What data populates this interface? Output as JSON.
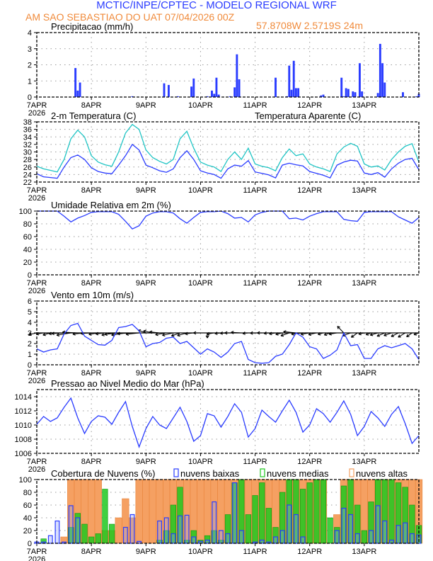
{
  "header": {
    "title": "MCTIC/INPE/CPTEC - MODELO REGIONAL WRF",
    "location": "AM SAO SEBASTIAO DO UAT   07/04/2026 00Z",
    "coords": "57.8708W 2.5719S 24m"
  },
  "colors": {
    "blue": "#2a3cff",
    "cyan": "#1ec4c4",
    "green": "#1fc81f",
    "orange": "#f5a062",
    "orange_edge": "#e8843a",
    "grid": "#9a9a9a"
  },
  "x_axis": {
    "day_labels": [
      "7APR",
      "8APR",
      "9APR",
      "10APR",
      "11APR",
      "12APR",
      "13APR"
    ],
    "year_label": "2026",
    "range": [
      "07/00Z",
      "14/00Z"
    ]
  },
  "time": [
    "07/00Z",
    "07/03Z",
    "07/06Z",
    "07/09Z",
    "07/12Z",
    "07/15Z",
    "07/18Z",
    "07/21Z",
    "08/00Z",
    "08/03Z",
    "08/06Z",
    "08/09Z",
    "08/12Z",
    "08/15Z",
    "08/18Z",
    "08/21Z",
    "09/00Z",
    "09/03Z",
    "09/06Z",
    "09/09Z",
    "09/12Z",
    "09/15Z",
    "09/18Z",
    "09/21Z",
    "10/00Z",
    "10/03Z",
    "10/06Z",
    "10/09Z",
    "10/12Z",
    "10/15Z",
    "10/18Z",
    "10/21Z",
    "11/00Z",
    "11/03Z",
    "11/06Z",
    "11/09Z",
    "11/12Z",
    "11/15Z",
    "11/18Z",
    "11/21Z",
    "12/00Z",
    "12/03Z",
    "12/06Z",
    "12/09Z",
    "12/12Z",
    "12/15Z",
    "12/18Z",
    "12/21Z",
    "13/00Z",
    "13/03Z",
    "13/06Z",
    "13/09Z",
    "13/12Z",
    "13/15Z",
    "13/18Z",
    "13/21Z",
    "14/00Z"
  ],
  "chart_data": [
    {
      "id": "precip",
      "type": "bar",
      "title": "Precipitacao (mm/h)",
      "ylim": [
        0,
        4
      ],
      "yticks": [
        0,
        1,
        2,
        3,
        4
      ],
      "grid": true,
      "points": [
        [
          "07/17Z",
          1.8
        ],
        [
          "07/18Z",
          0.4
        ],
        [
          "07/19Z",
          0.9
        ],
        [
          "08/18Z",
          0.05
        ],
        [
          "09/08Z",
          0.85
        ],
        [
          "09/10Z",
          0.75
        ],
        [
          "09/14Z",
          0.05
        ],
        [
          "09/20Z",
          0.65
        ],
        [
          "09/21Z",
          1.15
        ],
        [
          "10/03Z",
          0.05
        ],
        [
          "10/05Z",
          0.4
        ],
        [
          "10/06Z",
          0.2
        ],
        [
          "10/07Z",
          1.2
        ],
        [
          "10/08Z",
          0.15
        ],
        [
          "10/13Z",
          0.05
        ],
        [
          "10/15Z",
          0.6
        ],
        [
          "10/16Z",
          2.65
        ],
        [
          "10/17Z",
          1.1
        ],
        [
          "11/09Z",
          1.2
        ],
        [
          "11/14Z",
          0.05
        ],
        [
          "11/15Z",
          1.95
        ],
        [
          "11/16Z",
          0.45
        ],
        [
          "11/17Z",
          2.25
        ],
        [
          "11/18Z",
          0.55
        ],
        [
          "11/19Z",
          0.55
        ],
        [
          "12/05Z",
          0.1
        ],
        [
          "12/06Z",
          0.15
        ],
        [
          "12/14Z",
          1.2
        ],
        [
          "12/15Z",
          0.05
        ],
        [
          "12/16Z",
          0.55
        ],
        [
          "12/17Z",
          0.5
        ],
        [
          "12/19Z",
          0.35
        ],
        [
          "12/20Z",
          0.3
        ],
        [
          "12/22Z",
          2.1
        ],
        [
          "12/23Z",
          0.35
        ],
        [
          "13/06Z",
          0.25
        ],
        [
          "13/07Z",
          3.3
        ],
        [
          "13/08Z",
          2.1
        ],
        [
          "13/09Z",
          0.9
        ],
        [
          "13/17Z",
          0.3
        ],
        [
          "13/23Z",
          0.05
        ],
        [
          "14/00Z",
          0.2
        ]
      ]
    },
    {
      "id": "temp",
      "type": "line",
      "title": "2-m Temperatura (C)",
      "ylim": [
        22,
        38
      ],
      "yticks": [
        22,
        24,
        26,
        28,
        30,
        32,
        34,
        36,
        38
      ],
      "grid": true,
      "series": [
        {
          "name": "2-m Temperatura (C)",
          "color": "blue",
          "values": [
            24.2,
            23.4,
            23.2,
            23.0,
            26.0,
            28.5,
            29.2,
            28.0,
            25.8,
            24.8,
            24.4,
            24.2,
            26.5,
            29,
            32,
            30.5,
            26.5,
            25.8,
            25,
            24.6,
            25.5,
            28.5,
            30.3,
            28,
            25,
            24.4,
            24,
            23,
            25.5,
            26.5,
            26.2,
            27.7,
            24.7,
            24.3,
            23.9,
            23.1,
            26.5,
            27,
            26.6,
            26.3,
            24.8,
            24.3,
            23.8,
            23.1,
            26.5,
            27.3,
            27.8,
            27.6,
            24.4,
            24,
            24.5,
            23.3,
            25.5,
            27,
            28,
            28.3,
            25.3
          ]
        },
        {
          "name": "Temperatura Aparente (C)",
          "color": "cyan",
          "values": [
            26.2,
            25.5,
            25.1,
            24.7,
            28,
            33.5,
            35.8,
            34,
            29,
            27.3,
            26.6,
            26.2,
            30,
            35,
            37.3,
            36,
            30.5,
            28.5,
            27.5,
            26.8,
            28,
            33.5,
            35.5,
            31,
            27.3,
            26.5,
            26,
            24.8,
            28,
            30,
            28,
            31,
            26.8,
            26.2,
            25.8,
            25,
            28.5,
            30.8,
            29,
            29.5,
            26.8,
            26,
            25.5,
            24.8,
            29.5,
            31.3,
            32.3,
            31.5,
            26.8,
            26,
            26.3,
            25.2,
            28,
            30,
            31.5,
            32.2,
            27.3
          ]
        }
      ]
    },
    {
      "id": "rh",
      "type": "line",
      "title": "Umidade Relativa em 2m (%)",
      "ylim": [
        0,
        100
      ],
      "yticks": [
        0,
        20,
        40,
        60,
        80,
        100
      ],
      "grid": true,
      "series": [
        {
          "color": "blue",
          "values": [
            100,
            100,
            100,
            100,
            92,
            83,
            89,
            93,
            98,
            99,
            99,
            99,
            95,
            84,
            72,
            77,
            92,
            97,
            99,
            99,
            97,
            88,
            81,
            90,
            98,
            99,
            99,
            100,
            96,
            89,
            90,
            83,
            94,
            98,
            100,
            100,
            100,
            88,
            89,
            86,
            92,
            96,
            99,
            99,
            99,
            87,
            85,
            84,
            98,
            99,
            99,
            99,
            99,
            91,
            86,
            81,
            90
          ]
        }
      ]
    },
    {
      "id": "wind",
      "type": "line",
      "title": "Vento em 10m (m/s)",
      "ylim": [
        0,
        6
      ],
      "yticks": [
        0,
        1,
        2,
        3,
        4,
        5,
        6
      ],
      "grid": true,
      "series": [
        {
          "color": "blue",
          "values": [
            1.5,
            1.2,
            1.4,
            1.5,
            2.9,
            3.7,
            3.9,
            2.7,
            2.3,
            1.9,
            1.85,
            2.3,
            3.5,
            3.6,
            3.8,
            3.2,
            1.7,
            2.0,
            2.1,
            2.5,
            2.6,
            2.0,
            2.2,
            1.6,
            1.0,
            1.5,
            1.2,
            0.7,
            1.2,
            2.0,
            2.2,
            0.5,
            0.2,
            0.15,
            0.2,
            0.8,
            1.0,
            1.9,
            3.0,
            2.6,
            1.7,
            1.5,
            0.6,
            0.9,
            1.4,
            3.0,
            1.8,
            1.9,
            0.6,
            0.6,
            1.5,
            1.8,
            1.6,
            1.8,
            2.0,
            1.5,
            0.5
          ]
        }
      ],
      "vector_direction_deg": [
        70,
        75,
        65,
        80,
        85,
        75,
        95,
        80,
        85,
        75,
        80,
        70,
        80,
        75,
        85,
        80,
        120,
        110,
        100,
        75,
        70,
        60,
        65,
        80,
        90,
        0,
        75,
        80,
        85,
        90,
        95,
        80,
        85,
        90,
        80,
        75,
        70,
        60,
        100,
        80,
        75,
        70,
        65,
        60,
        75,
        150,
        60,
        40,
        70,
        60,
        65,
        55,
        60,
        50,
        45,
        40,
        60
      ]
    },
    {
      "id": "pressure",
      "type": "line",
      "title": "Pressao ao Nivel Medio do Mar (hPa)",
      "ylim": [
        1006,
        1015
      ],
      "yticks": [
        1006,
        1008,
        1010,
        1012,
        1014
      ],
      "grid": true,
      "series": [
        {
          "color": "blue",
          "values": [
            1010.1,
            1011.2,
            1010.5,
            1011,
            1012.5,
            1013.8,
            1011,
            1008.8,
            1010.5,
            1011.3,
            1011.1,
            1010.1,
            1011.8,
            1013.3,
            1009.8,
            1006.9,
            1009.5,
            1011.2,
            1010,
            1009.5,
            1011,
            1012.5,
            1010.5,
            1007.7,
            1008.5,
            1011.6,
            1011.3,
            1009.7,
            1011.2,
            1013,
            1011.8,
            1008.3,
            1009.5,
            1012.1,
            1011.2,
            1010.4,
            1012,
            1013.5,
            1011.8,
            1009,
            1010,
            1012.3,
            1011.6,
            1010.4,
            1011.8,
            1013.4,
            1011.5,
            1008.5,
            1009.8,
            1011.9,
            1011,
            1009.8,
            1011.5,
            1012.6,
            1010.2,
            1007.4,
            1008.5
          ]
        }
      ]
    },
    {
      "id": "clouds",
      "type": "bar",
      "title": "Cobertura de Nuvens (%)",
      "ylim": [
        0,
        100
      ],
      "yticks": [
        0,
        20,
        40,
        60,
        80,
        100
      ],
      "grid": true,
      "series": [
        {
          "name": "nuvens altas",
          "color": "orange",
          "values": [
            0,
            0,
            0,
            0,
            10,
            100,
            100,
            100,
            100,
            100,
            20,
            20,
            40,
            70,
            40,
            100,
            100,
            100,
            100,
            100,
            100,
            100,
            100,
            100,
            100,
            100,
            100,
            100,
            100,
            100,
            100,
            100,
            100,
            100,
            100,
            100,
            100,
            100,
            100,
            100,
            100,
            100,
            100,
            0,
            45,
            100,
            100,
            100,
            100,
            100,
            100,
            100,
            100,
            100,
            100,
            100,
            100
          ]
        },
        {
          "name": "nuvens medias",
          "color": "green",
          "values": [
            0,
            7,
            0,
            0,
            0,
            25,
            47,
            30,
            10,
            15,
            85,
            30,
            0,
            0,
            0,
            0,
            0,
            0,
            5,
            20,
            60,
            88,
            5,
            20,
            5,
            12,
            20,
            5,
            45,
            95,
            100,
            45,
            75,
            95,
            55,
            25,
            80,
            100,
            100,
            85,
            95,
            100,
            100,
            40,
            25,
            90,
            100,
            60,
            20,
            65,
            100,
            100,
            100,
            95,
            88,
            60,
            28
          ]
        },
        {
          "name": "nuvens baixas",
          "color": "blue",
          "values": [
            2,
            2,
            12,
            35,
            2,
            59,
            40,
            0,
            0,
            0,
            0,
            0,
            0,
            25,
            45,
            3,
            0,
            0,
            35,
            40,
            15,
            43,
            44,
            10,
            3,
            5,
            65,
            20,
            15,
            95,
            20,
            0,
            2,
            5,
            2,
            10,
            20,
            60,
            45,
            10,
            0,
            0,
            0,
            0,
            20,
            55,
            45,
            15,
            0,
            20,
            59,
            35,
            5,
            28,
            32,
            15,
            13
          ]
        }
      ]
    }
  ]
}
